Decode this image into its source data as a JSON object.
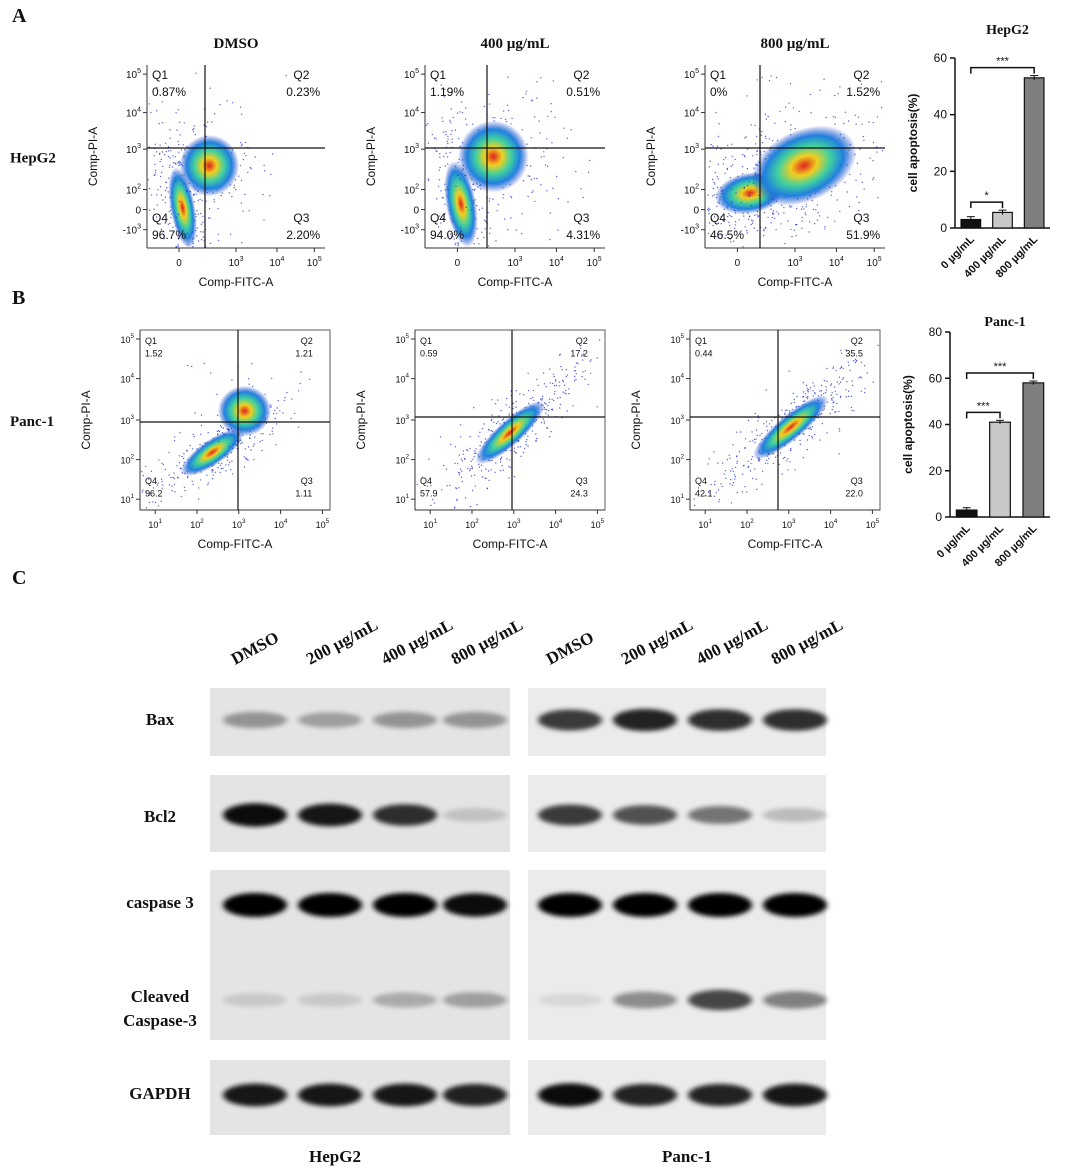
{
  "panel_labels": [
    "A",
    "B",
    "C"
  ],
  "flow": {
    "column_titles": [
      "DMSO",
      "400 µg/mL",
      "800 µg/mL"
    ],
    "rows": [
      {
        "label": "HepG2",
        "x_axis_label": "Comp-FITC-A",
        "y_axis_label": "Comp-PI-A",
        "yticks": [
          {
            "base": "10",
            "exp": "5"
          },
          {
            "base": "10",
            "exp": "4"
          },
          {
            "base": "10",
            "exp": "3"
          },
          {
            "base": "10",
            "exp": "2"
          },
          {
            "base": "0"
          },
          {
            "base": "-10",
            "exp": "3"
          }
        ],
        "xticks": [
          {
            "base": "0"
          },
          {
            "base": "10",
            "exp": "3"
          },
          {
            "base": "10",
            "exp": "4"
          },
          {
            "base": "10",
            "exp": "5"
          }
        ],
        "plots": [
          {
            "quadrants": [
              {
                "name": "Q1",
                "value": "0.87%"
              },
              {
                "name": "Q2",
                "value": "0.23%"
              },
              {
                "name": "Q3",
                "value": "2.20%"
              },
              {
                "name": "Q4",
                "value": "96.7%"
              }
            ]
          },
          {
            "quadrants": [
              {
                "name": "Q1",
                "value": "1.19%"
              },
              {
                "name": "Q2",
                "value": "0.51%"
              },
              {
                "name": "Q3",
                "value": "4.31%"
              },
              {
                "name": "Q4",
                "value": "94.0%"
              }
            ]
          },
          {
            "quadrants": [
              {
                "name": "Q1",
                "value": "0%"
              },
              {
                "name": "Q2",
                "value": "1.52%"
              },
              {
                "name": "Q3",
                "value": "51.9%"
              },
              {
                "name": "Q4",
                "value": "46.5%"
              }
            ]
          }
        ]
      },
      {
        "label": "Panc-1",
        "x_axis_label": "Comp-FITC-A",
        "y_axis_label": "Comp-PI-A",
        "yticks": [
          {
            "base": "10",
            "exp": "5"
          },
          {
            "base": "10",
            "exp": "4"
          },
          {
            "base": "10",
            "exp": "3"
          },
          {
            "base": "10",
            "exp": "2"
          },
          {
            "base": "10",
            "exp": "1"
          }
        ],
        "xticks": [
          {
            "base": "10",
            "exp": "1"
          },
          {
            "base": "10",
            "exp": "2"
          },
          {
            "base": "10",
            "exp": "3"
          },
          {
            "base": "10",
            "exp": "4"
          },
          {
            "base": "10",
            "exp": "5"
          }
        ],
        "plots": [
          {
            "quadrants": [
              {
                "name": "Q1",
                "value": "1.52"
              },
              {
                "name": "Q2",
                "value": "1.21"
              },
              {
                "name": "Q3",
                "value": "1.11"
              },
              {
                "name": "Q4",
                "value": "96.2"
              }
            ]
          },
          {
            "quadrants": [
              {
                "name": "Q1",
                "value": "0.59"
              },
              {
                "name": "Q2",
                "value": "17.2"
              },
              {
                "name": "Q3",
                "value": "24.3"
              },
              {
                "name": "Q4",
                "value": "57.9"
              }
            ]
          },
          {
            "quadrants": [
              {
                "name": "Q1",
                "value": "0.44"
              },
              {
                "name": "Q2",
                "value": "35.5"
              },
              {
                "name": "Q3",
                "value": "22.0"
              },
              {
                "name": "Q4",
                "value": "42.1"
              }
            ]
          }
        ]
      }
    ]
  },
  "chart_data": [
    {
      "type": "bar",
      "title": "HepG2",
      "y_label": "cell apoptosis(%)",
      "categories": [
        "0 µg/mL",
        "400 µg/mL",
        "800 µg/mL"
      ],
      "values": [
        3,
        5.5,
        53
      ],
      "errors": [
        1,
        0.8,
        0.8
      ],
      "colors": [
        "#111111",
        "#c8c8c8",
        "#7f7f7f"
      ],
      "ylim": [
        0,
        60
      ],
      "yticks": [
        0,
        20,
        40,
        60
      ],
      "significance": [
        {
          "from": 0,
          "to": 1,
          "label": "*"
        },
        {
          "from": 0,
          "to": 2,
          "label": "***"
        }
      ]
    },
    {
      "type": "bar",
      "title": "Panc-1",
      "y_label": "cell apoptosis(%)",
      "categories": [
        "0 µg/mL",
        "400 µg/mL",
        "800 µg/mL"
      ],
      "values": [
        3,
        41,
        58
      ],
      "errors": [
        1,
        0.8,
        0.8
      ],
      "colors": [
        "#111111",
        "#c8c8c8",
        "#7f7f7f"
      ],
      "ylim": [
        0,
        80
      ],
      "yticks": [
        0,
        20,
        40,
        60,
        80
      ],
      "significance": [
        {
          "from": 0,
          "to": 1,
          "label": "***"
        },
        {
          "from": 0,
          "to": 2,
          "label": "***"
        }
      ]
    }
  ],
  "blot": {
    "lanes": [
      "DMSO",
      "200 µg/mL",
      "400 µg/mL",
      "800 µg/mL"
    ],
    "rows": [
      [
        "Bax"
      ],
      [
        "Bcl2"
      ],
      [
        "caspase 3"
      ],
      [
        "Cleaved",
        "Caspase-3"
      ],
      [
        "GAPDH"
      ]
    ],
    "cell_lines": [
      "HepG2",
      "Panc-1"
    ]
  }
}
